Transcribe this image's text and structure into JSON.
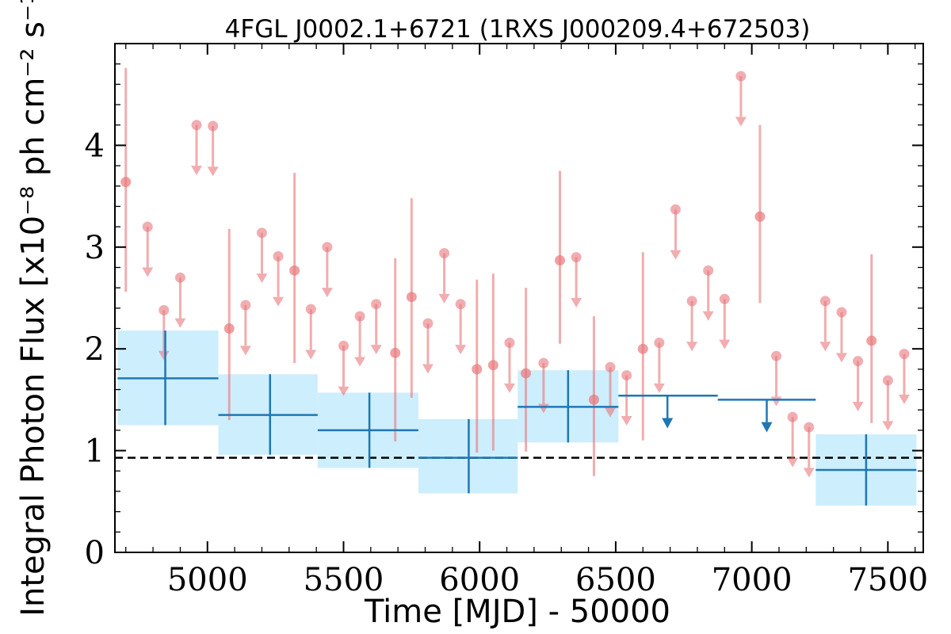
{
  "chart_data": {
    "type": "scatter",
    "title": "4FGL J0002.1+6721 (1RXS J000209.4+672503)",
    "xlabel": "Time [MJD] - 50000",
    "ylabel": "Integral Photon Flux [x10⁻⁸ ph cm⁻² s⁻¹]",
    "xlim": [
      4660,
      7630
    ],
    "ylim": [
      0,
      5.0
    ],
    "x_ticks": [
      5000,
      5500,
      6000,
      6500,
      7000,
      7500
    ],
    "x_tick_labels": [
      "5000",
      "5500",
      "6000",
      "6500",
      "7000",
      "7500"
    ],
    "y_ticks": [
      0,
      1,
      2,
      3,
      4
    ],
    "y_tick_labels": [
      "0",
      "1",
      "2",
      "3",
      "4"
    ],
    "grid": false,
    "reference_line": {
      "y": 0.93,
      "style": "dashed",
      "color": "#000000"
    },
    "colors": {
      "fine": "#e8777b",
      "coarse": "#1f77b4",
      "coarse_band": "#cdeefc"
    },
    "series": [
      {
        "kind": "short_bins",
        "detections": [
          {
            "x": 4700,
            "y": 3.64,
            "lo": 2.56,
            "hi": 4.76
          },
          {
            "x": 5080,
            "y": 2.2,
            "lo": 1.3,
            "hi": 3.18
          },
          {
            "x": 5320,
            "y": 2.77,
            "lo": 1.86,
            "hi": 3.73
          },
          {
            "x": 5690,
            "y": 1.96,
            "lo": 1.09,
            "hi": 2.89
          },
          {
            "x": 5750,
            "y": 2.51,
            "lo": 1.52,
            "hi": 3.48
          },
          {
            "x": 5990,
            "y": 1.8,
            "lo": 0.98,
            "hi": 2.68
          },
          {
            "x": 6050,
            "y": 1.84,
            "lo": 1.0,
            "hi": 2.74
          },
          {
            "x": 6170,
            "y": 1.76,
            "lo": 0.99,
            "hi": 2.6
          },
          {
            "x": 6295,
            "y": 2.87,
            "lo": 2.05,
            "hi": 3.75
          },
          {
            "x": 6420,
            "y": 1.5,
            "lo": 0.75,
            "hi": 2.32
          },
          {
            "x": 6600,
            "y": 2.0,
            "lo": 1.1,
            "hi": 2.95
          },
          {
            "x": 7030,
            "y": 3.3,
            "lo": 2.45,
            "hi": 4.2
          },
          {
            "x": 7440,
            "y": 2.08,
            "lo": 1.27,
            "hi": 2.93
          }
        ],
        "upper_limits": [
          {
            "x": 4780,
            "y": 3.2
          },
          {
            "x": 4840,
            "y": 2.38
          },
          {
            "x": 4900,
            "y": 2.7
          },
          {
            "x": 4960,
            "y": 4.2
          },
          {
            "x": 5020,
            "y": 4.19
          },
          {
            "x": 5140,
            "y": 2.43
          },
          {
            "x": 5200,
            "y": 3.14
          },
          {
            "x": 5260,
            "y": 2.91
          },
          {
            "x": 5380,
            "y": 2.39
          },
          {
            "x": 5440,
            "y": 3.0
          },
          {
            "x": 5500,
            "y": 2.03
          },
          {
            "x": 5560,
            "y": 2.32
          },
          {
            "x": 5620,
            "y": 2.44
          },
          {
            "x": 5810,
            "y": 2.25
          },
          {
            "x": 5870,
            "y": 2.94
          },
          {
            "x": 5930,
            "y": 2.44
          },
          {
            "x": 6110,
            "y": 2.06
          },
          {
            "x": 6235,
            "y": 1.86
          },
          {
            "x": 6355,
            "y": 2.9
          },
          {
            "x": 6480,
            "y": 1.82
          },
          {
            "x": 6540,
            "y": 1.74
          },
          {
            "x": 6660,
            "y": 2.06
          },
          {
            "x": 6720,
            "y": 3.37
          },
          {
            "x": 6780,
            "y": 2.47
          },
          {
            "x": 6840,
            "y": 2.77
          },
          {
            "x": 6900,
            "y": 2.49
          },
          {
            "x": 6960,
            "y": 4.68
          },
          {
            "x": 7090,
            "y": 1.93
          },
          {
            "x": 7150,
            "y": 1.33
          },
          {
            "x": 7210,
            "y": 1.23
          },
          {
            "x": 7270,
            "y": 2.47
          },
          {
            "x": 7330,
            "y": 2.36
          },
          {
            "x": 7390,
            "y": 1.88
          },
          {
            "x": 7500,
            "y": 1.69
          },
          {
            "x": 7560,
            "y": 1.95
          }
        ]
      },
      {
        "kind": "long_bins",
        "detections": [
          {
            "x0": 4670,
            "x1": 5040,
            "xc": 4845,
            "y": 1.71,
            "lo": 1.25,
            "hi": 2.18
          },
          {
            "x0": 5040,
            "x1": 5405,
            "xc": 5230,
            "y": 1.35,
            "lo": 0.96,
            "hi": 1.75
          },
          {
            "x0": 5405,
            "x1": 5775,
            "xc": 5595,
            "y": 1.2,
            "lo": 0.83,
            "hi": 1.57
          },
          {
            "x0": 5775,
            "x1": 6140,
            "xc": 5960,
            "y": 0.93,
            "lo": 0.58,
            "hi": 1.31
          },
          {
            "x0": 6140,
            "x1": 6510,
            "xc": 6325,
            "y": 1.43,
            "lo": 1.08,
            "hi": 1.79
          },
          {
            "x0": 7235,
            "x1": 7605,
            "xc": 7420,
            "y": 0.81,
            "lo": 0.46,
            "hi": 1.16
          }
        ],
        "upper_limits": [
          {
            "x0": 6510,
            "x1": 6875,
            "xc": 6690,
            "y": 1.54
          },
          {
            "x0": 6875,
            "x1": 7235,
            "xc": 7055,
            "y": 1.5
          }
        ]
      }
    ]
  }
}
